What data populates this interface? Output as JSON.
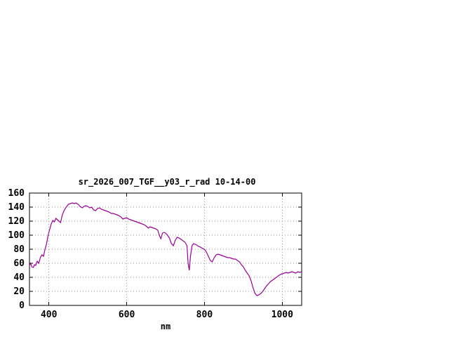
{
  "window": {
    "background_color": "#ffffff"
  },
  "chart_data": {
    "type": "line",
    "title": "sr_2026_007_TGF__y03_r_rad 10-14-00",
    "xlabel": "nm",
    "ylabel": "",
    "xlim": [
      350,
      1050
    ],
    "ylim": [
      0,
      160
    ],
    "x_ticks": [
      400,
      600,
      800,
      1000
    ],
    "y_ticks": [
      0,
      20,
      40,
      60,
      80,
      100,
      120,
      140,
      160
    ],
    "grid": true,
    "legend_position": "none",
    "line_color": "#990099",
    "series": [
      {
        "name": "sr_2026_007_TGF__y03_r_rad",
        "x": [
          350,
          353,
          356,
          360,
          363,
          366,
          370,
          374,
          378,
          382,
          386,
          390,
          394,
          398,
          402,
          406,
          410,
          414,
          418,
          422,
          426,
          430,
          434,
          438,
          442,
          446,
          450,
          455,
          460,
          465,
          470,
          475,
          480,
          486,
          490,
          495,
          500,
          505,
          510,
          515,
          520,
          525,
          530,
          535,
          540,
          545,
          550,
          555,
          560,
          565,
          570,
          575,
          580,
          585,
          590,
          595,
          600,
          605,
          610,
          615,
          620,
          625,
          630,
          635,
          640,
          645,
          650,
          656,
          660,
          665,
          670,
          675,
          680,
          684,
          688,
          692,
          696,
          700,
          705,
          710,
          715,
          720,
          725,
          730,
          735,
          740,
          745,
          750,
          755,
          758,
          761,
          764,
          768,
          772,
          776,
          780,
          785,
          790,
          795,
          800,
          805,
          810,
          815,
          820,
          825,
          830,
          835,
          840,
          845,
          850,
          855,
          860,
          865,
          870,
          875,
          880,
          885,
          890,
          895,
          900,
          905,
          910,
          915,
          920,
          925,
          930,
          935,
          940,
          945,
          950,
          955,
          960,
          965,
          970,
          975,
          980,
          985,
          990,
          995,
          1000,
          1005,
          1010,
          1015,
          1020,
          1025,
          1030,
          1035,
          1040,
          1045,
          1050
        ],
        "y": [
          57,
          60,
          55,
          54,
          58,
          57,
          63,
          60,
          68,
          72,
          70,
          80,
          88,
          100,
          108,
          116,
          121,
          119,
          124,
          122,
          120,
          118,
          128,
          134,
          138,
          141,
          144,
          145,
          146,
          145,
          146,
          144,
          141,
          139,
          141,
          142,
          141,
          139,
          140,
          136,
          135,
          138,
          139,
          137,
          136,
          135,
          134,
          133,
          131,
          131,
          130,
          129,
          128,
          126,
          123,
          124,
          125,
          123,
          122,
          121,
          120,
          119,
          118,
          117,
          116,
          115,
          113,
          110,
          112,
          111,
          110,
          109,
          107,
          100,
          95,
          103,
          104,
          103,
          100,
          96,
          88,
          85,
          93,
          97,
          96,
          94,
          92,
          90,
          85,
          60,
          50,
          70,
          85,
          88,
          87,
          86,
          84,
          83,
          81,
          80,
          76,
          70,
          64,
          62,
          68,
          72,
          73,
          72,
          71,
          70,
          69,
          68,
          68,
          67,
          66,
          66,
          64,
          62,
          58,
          55,
          50,
          46,
          42,
          35,
          25,
          17,
          14,
          15,
          17,
          20,
          24,
          28,
          31,
          34,
          36,
          38,
          40,
          42,
          44,
          45,
          46,
          47,
          46,
          47,
          48,
          47,
          46,
          48,
          47,
          48
        ]
      }
    ]
  }
}
